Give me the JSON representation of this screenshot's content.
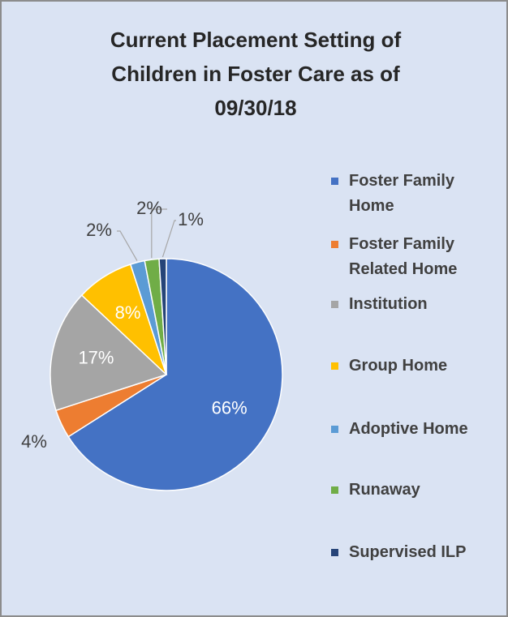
{
  "chart_data": {
    "type": "pie",
    "title": "Current Placement Setting of Children in Foster Care as of 09/30/18",
    "categories": [
      "Foster Family Home",
      "Foster Family Related Home",
      "Institution",
      "Group Home",
      "Adoptive Home",
      "Runaway",
      "Supervised ILP"
    ],
    "values": [
      66,
      4,
      17,
      8,
      2,
      2,
      1
    ],
    "value_labels": [
      "66%",
      "4%",
      "17%",
      "8%",
      "2%",
      "2%",
      "1%"
    ],
    "colors": [
      "#4472c4",
      "#ed7d31",
      "#a5a5a5",
      "#ffc000",
      "#5b9bd5",
      "#70ad47",
      "#264478"
    ],
    "legend": "right"
  }
}
